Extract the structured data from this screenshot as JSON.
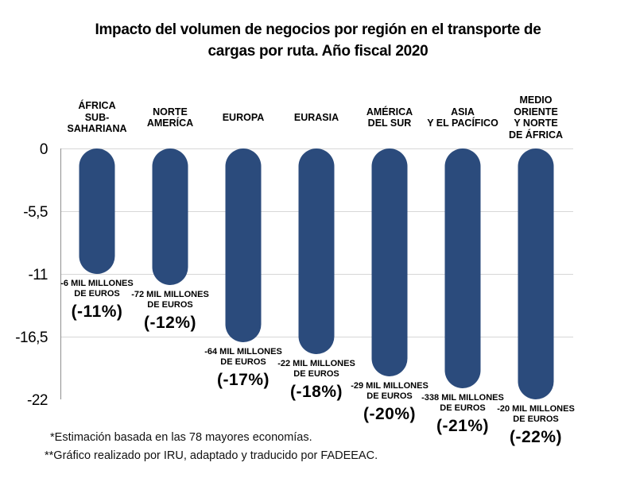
{
  "title_display": "Impacto del volumen de negocios por región en el transporte de\ncargas por ruta. Año fiscal 2020",
  "footnotes": [
    "*Estimación basada en las 78 mayores economías.",
    "**Gráfico realizado por IRU, adaptado y traducido por FADEEAC."
  ],
  "chart_data": {
    "type": "bar",
    "orientation": "vertical",
    "title": "Impacto del volumen de negocios por región en el transporte de cargas por ruta. Año fiscal 2020",
    "categories": [
      "ÁFRICA SUB-SAHARIANA",
      "NORTE AMERÍCA",
      "EUROPA",
      "EURASIA",
      "AMÉRICA DEL SUR",
      "ASIA Y EL PACÍFICO",
      "MEDIO ORIENTE Y NORTE DE ÁFRICA"
    ],
    "values_pct": [
      -11,
      -12,
      -17,
      -18,
      -20,
      -21,
      -22
    ],
    "values_eur_mil_millones": [
      -6,
      -72,
      -64,
      -22,
      -29,
      -338,
      -20
    ],
    "y_ticks": [
      "0",
      "-5,5",
      "-11",
      "-16,5",
      "-22"
    ],
    "ylim": [
      -22,
      0
    ],
    "grid": true,
    "bar_color": "#2b4b7c",
    "gridline_color": "#d7d7d7",
    "axis_color": "#8f8f8f",
    "columns": [
      {
        "header": "ÁFRICA\nSUB-SAHARIANA",
        "amount": "-6 MIL MILLONES\nDE EUROS",
        "pct": "(-11%)"
      },
      {
        "header": "NORTE\nAMERÍCA",
        "amount": "-72 MIL MILLONES\nDE EUROS",
        "pct": "(-12%)"
      },
      {
        "header": "EUROPA",
        "amount": "-64 MIL MILLONES\nDE EUROS",
        "pct": "(-17%)"
      },
      {
        "header": "EURASIA",
        "amount": "-22 MIL MILLONES\nDE EUROS",
        "pct": "(-18%)"
      },
      {
        "header": "AMÉRICA\nDEL SUR",
        "amount": "-29 MIL MILLONES\nDE EUROS",
        "pct": "(-20%)"
      },
      {
        "header": "ASIA\nY EL PACÍFICO",
        "amount": "-338 MIL MILLONES\nDE EUROS",
        "pct": "(-21%)"
      },
      {
        "header": "MEDIO ORIENTE\nY NORTE\nDE ÁFRICA",
        "amount": "-20 MIL MILLONES\nDE EUROS",
        "pct": "(-22%)"
      }
    ]
  }
}
